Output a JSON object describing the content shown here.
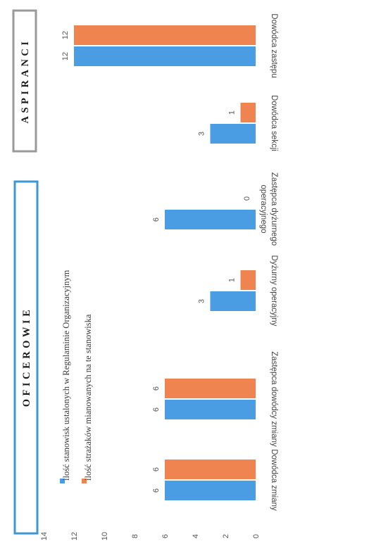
{
  "chart_data": {
    "type": "bar",
    "orientation": "rotated-90-clockwise",
    "categories": [
      "Dowódca zmiany",
      "Zastępca dowódcy zmiany",
      "Dyżurny operacyjny",
      "Zastępca dyżurnego operacyjnego",
      "Dowódca sekcji",
      "Dowódca zastępu"
    ],
    "category_lines": [
      [
        "Dowódca zmiany"
      ],
      [
        "Zastępca dowódcy zmiany"
      ],
      [
        "Dyżurny operacyjny"
      ],
      [
        "Zastępca dyżurnego",
        "operacyjnego"
      ],
      [
        "Dowódca sekcji"
      ],
      [
        "Dowódca zastępu"
      ]
    ],
    "series": [
      {
        "name": "ilość stanowisk ustalonych w Regulaminie Organizacyjnym",
        "color": "#4a9de2",
        "values": [
          6,
          6,
          3,
          6,
          3,
          12
        ]
      },
      {
        "name": "ilość strażaków mianowanych na te stanowiska",
        "color": "#ef8450",
        "values": [
          6,
          6,
          1,
          0,
          1,
          12
        ]
      }
    ],
    "ylim": [
      0,
      14
    ],
    "yticks": [
      "0",
      "2",
      "4",
      "6",
      "8",
      "10",
      "12",
      "14"
    ],
    "grid": false,
    "legend_position": "top-left",
    "group_labels": [
      "OFICEROWIE",
      "ASPIRANCI"
    ],
    "group_colors": {
      "OFICEROWIE": "#3e97d6",
      "ASPIRANCI": "#9a9a9a"
    }
  }
}
